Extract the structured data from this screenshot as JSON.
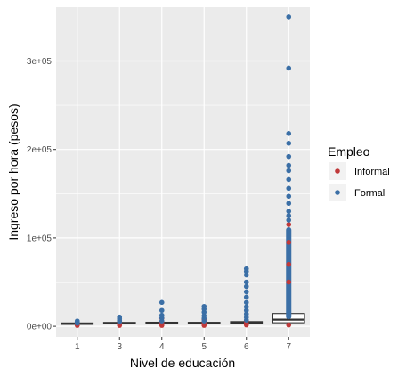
{
  "chart_data": {
    "type": "boxplot",
    "title": "",
    "xlabel": "Nivel de educación",
    "ylabel": "Ingreso por hora (pesos)",
    "categories": [
      "1",
      "3",
      "4",
      "5",
      "6",
      "7"
    ],
    "ylim": [
      -12000,
      361000
    ],
    "yticks": [
      0,
      100000,
      200000,
      300000
    ],
    "ytick_labels": [
      "0e+00",
      "1e+05",
      "2e+05",
      "3e+05"
    ],
    "grid": true,
    "legend": {
      "title": "Empleo",
      "placement": "right",
      "entries": [
        {
          "label": "Informal",
          "color": "#C0393A"
        },
        {
          "label": "Formal",
          "color": "#3B6FA6"
        }
      ]
    },
    "boxes": [
      {
        "category": "1",
        "q1": 2200,
        "median": 3000,
        "q3": 3800
      },
      {
        "category": "3",
        "q1": 2700,
        "median": 3500,
        "q3": 4400
      },
      {
        "category": "4",
        "q1": 2800,
        "median": 3700,
        "q3": 4600
      },
      {
        "category": "5",
        "q1": 2700,
        "median": 3600,
        "q3": 4500
      },
      {
        "category": "6",
        "q1": 3000,
        "median": 4100,
        "q3": 5300
      },
      {
        "category": "7",
        "q1": 4000,
        "median": 7500,
        "q3": 14500
      }
    ],
    "series": [
      {
        "name": "Informal",
        "color": "#C0393A",
        "points": [
          {
            "x": "1",
            "y": 1000
          },
          {
            "x": "1",
            "y": 2000
          },
          {
            "x": "1",
            "y": 3000
          },
          {
            "x": "1",
            "y": 4000
          },
          {
            "x": "3",
            "y": 1000
          },
          {
            "x": "3",
            "y": 2500
          },
          {
            "x": "3",
            "y": 4000
          },
          {
            "x": "3",
            "y": 6000
          },
          {
            "x": "4",
            "y": 1000
          },
          {
            "x": "4",
            "y": 3000
          },
          {
            "x": "4",
            "y": 5000
          },
          {
            "x": "4",
            "y": 9000
          },
          {
            "x": "5",
            "y": 1000
          },
          {
            "x": "5",
            "y": 3000
          },
          {
            "x": "5",
            "y": 5000
          },
          {
            "x": "5",
            "y": 8000
          },
          {
            "x": "6",
            "y": 1500
          },
          {
            "x": "6",
            "y": 3500
          },
          {
            "x": "6",
            "y": 6000
          },
          {
            "x": "7",
            "y": 1500
          },
          {
            "x": "7",
            "y": 50000
          },
          {
            "x": "7",
            "y": 70000
          },
          {
            "x": "7",
            "y": 95000
          },
          {
            "x": "7",
            "y": 115000
          }
        ]
      },
      {
        "name": "Formal",
        "color": "#3B6FA6",
        "points": [
          {
            "x": "1",
            "y": 3500
          },
          {
            "x": "1",
            "y": 5000
          },
          {
            "x": "1",
            "y": 6000
          },
          {
            "x": "3",
            "y": 5000
          },
          {
            "x": "3",
            "y": 7000
          },
          {
            "x": "3",
            "y": 9000
          },
          {
            "x": "3",
            "y": 10500
          },
          {
            "x": "4",
            "y": 6000
          },
          {
            "x": "4",
            "y": 9500
          },
          {
            "x": "4",
            "y": 12500
          },
          {
            "x": "4",
            "y": 18000
          },
          {
            "x": "4",
            "y": 27000
          },
          {
            "x": "5",
            "y": 6000
          },
          {
            "x": "5",
            "y": 9000
          },
          {
            "x": "5",
            "y": 12000
          },
          {
            "x": "5",
            "y": 16000
          },
          {
            "x": "5",
            "y": 19500
          },
          {
            "x": "5",
            "y": 22500
          },
          {
            "x": "6",
            "y": 7000
          },
          {
            "x": "6",
            "y": 10000
          },
          {
            "x": "6",
            "y": 14000
          },
          {
            "x": "6",
            "y": 18000
          },
          {
            "x": "6",
            "y": 22000
          },
          {
            "x": "6",
            "y": 27000
          },
          {
            "x": "6",
            "y": 33000
          },
          {
            "x": "6",
            "y": 39000
          },
          {
            "x": "6",
            "y": 45000
          },
          {
            "x": "6",
            "y": 50000
          },
          {
            "x": "6",
            "y": 58000
          },
          {
            "x": "6",
            "y": 62000
          },
          {
            "x": "6",
            "y": 65000
          },
          {
            "x": "7",
            "y": 350000
          },
          {
            "x": "7",
            "y": 292000
          },
          {
            "x": "7",
            "y": 218000
          },
          {
            "x": "7",
            "y": 207000
          },
          {
            "x": "7",
            "y": 192000
          },
          {
            "x": "7",
            "y": 182000
          },
          {
            "x": "7",
            "y": 176000
          },
          {
            "x": "7",
            "y": 166000
          },
          {
            "x": "7",
            "y": 156000
          },
          {
            "x": "7",
            "y": 147000
          },
          {
            "x": "7",
            "y": 139000
          },
          {
            "x": "7",
            "y": 130000
          },
          {
            "x": "7",
            "y": 125000
          },
          {
            "x": "7",
            "y": 120000
          }
        ],
        "dense_ranges": [
          {
            "x": "7",
            "from": 8000,
            "to": 112000
          }
        ]
      }
    ]
  }
}
